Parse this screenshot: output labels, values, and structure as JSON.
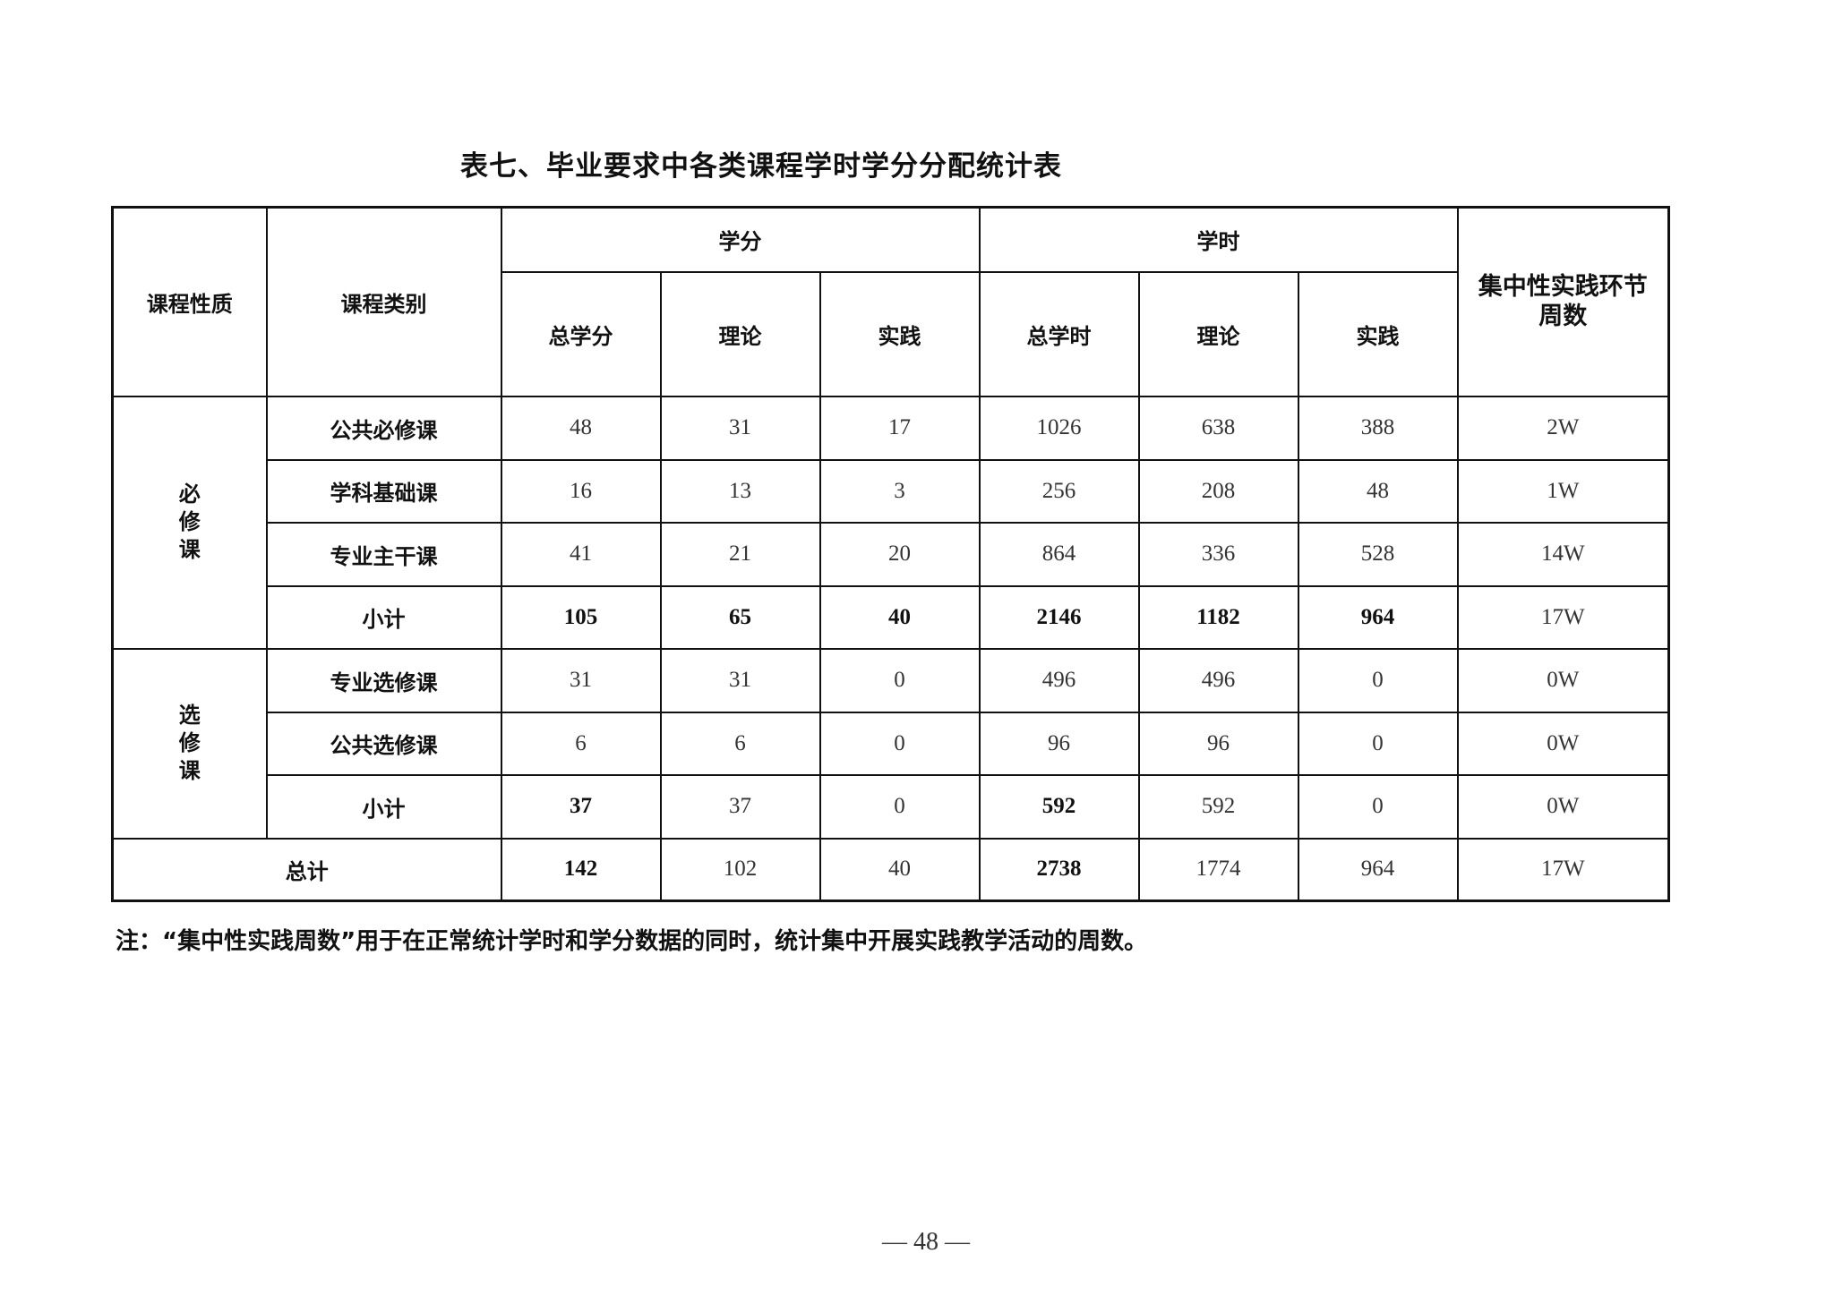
{
  "title": "表七、毕业要求中各类课程学时学分分配统计表",
  "header": {
    "nature": "课程性质",
    "category": "课程类别",
    "credits": "学分",
    "hours": "学时",
    "weeks": "集中性实践环节周数",
    "sub": [
      "总学分",
      "理论",
      "实践",
      "总学时",
      "理论",
      "实践"
    ]
  },
  "groups": [
    {
      "name": "必修课",
      "rows": [
        {
          "category": "公共必修课",
          "values": [
            "48",
            "31",
            "17",
            "1026",
            "638",
            "388",
            "2W"
          ],
          "bold": [
            false,
            false,
            false,
            false,
            false,
            false,
            false
          ]
        },
        {
          "category": "学科基础课",
          "values": [
            "16",
            "13",
            "3",
            "256",
            "208",
            "48",
            "1W"
          ],
          "bold": [
            false,
            false,
            false,
            false,
            false,
            false,
            false
          ]
        },
        {
          "category": "专业主干课",
          "values": [
            "41",
            "21",
            "20",
            "864",
            "336",
            "528",
            "14W"
          ],
          "bold": [
            false,
            false,
            false,
            false,
            false,
            false,
            false
          ]
        },
        {
          "category": "小计",
          "values": [
            "105",
            "65",
            "40",
            "2146",
            "1182",
            "964",
            "17W"
          ],
          "bold": [
            true,
            true,
            true,
            true,
            true,
            true,
            false
          ]
        }
      ]
    },
    {
      "name": "选修课",
      "rows": [
        {
          "category": "专业选修课",
          "values": [
            "31",
            "31",
            "0",
            "496",
            "496",
            "0",
            "0W"
          ],
          "bold": [
            false,
            false,
            false,
            false,
            false,
            false,
            false
          ]
        },
        {
          "category": "公共选修课",
          "values": [
            "6",
            "6",
            "0",
            "96",
            "96",
            "0",
            "0W"
          ],
          "bold": [
            false,
            false,
            false,
            false,
            false,
            false,
            false
          ]
        },
        {
          "category": "小计",
          "values": [
            "37",
            "37",
            "0",
            "592",
            "592",
            "0",
            "0W"
          ],
          "bold": [
            true,
            false,
            false,
            true,
            false,
            false,
            false
          ]
        }
      ]
    }
  ],
  "total": {
    "label": "总计",
    "values": [
      "142",
      "102",
      "40",
      "2738",
      "1774",
      "964",
      "17W"
    ],
    "bold": [
      true,
      false,
      false,
      true,
      false,
      false,
      false
    ]
  },
  "note": "注：“集中性实践周数”用于在正常统计学时和学分数据的同时，统计集中开展实践教学活动的周数。",
  "page_number": "— 48 —"
}
